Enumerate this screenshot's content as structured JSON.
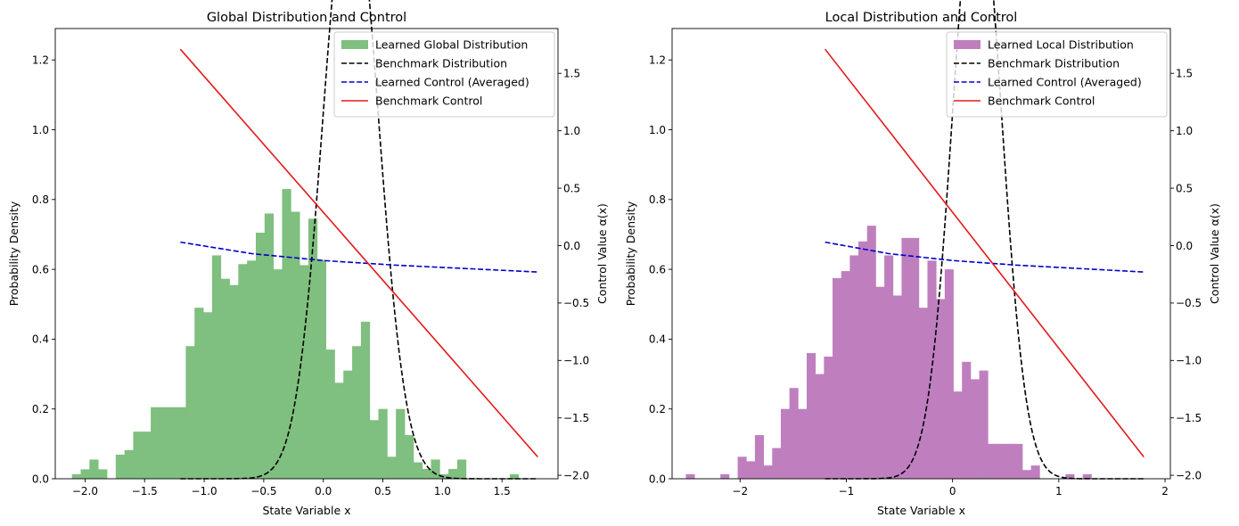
{
  "chart_data": [
    {
      "type": "bar+line",
      "title": "Global Distribution and Control",
      "xlabel": "State Variable x",
      "ylabel": "Probability Density",
      "y2label": "Control Value α(x)",
      "xlim": [
        -2.25,
        1.97
      ],
      "ylim": [
        0,
        1.29
      ],
      "y2lim": [
        -2.03,
        1.89
      ],
      "xticks": [
        -2.0,
        -1.5,
        -1.0,
        -0.5,
        0.0,
        0.5,
        1.0,
        1.5
      ],
      "xtick_labels": [
        "−2.0",
        "−1.5",
        "−1.0",
        "−0.5",
        "0.0",
        "0.5",
        "1.0",
        "1.5"
      ],
      "yticks": [
        0.0,
        0.2,
        0.4,
        0.6,
        0.8,
        1.0,
        1.2
      ],
      "ytick_labels": [
        "0.0",
        "0.2",
        "0.4",
        "0.6",
        "0.8",
        "1.0",
        "1.2"
      ],
      "y2ticks": [
        -2.0,
        -1.5,
        -1.0,
        -0.5,
        0.0,
        0.5,
        1.0,
        1.5
      ],
      "y2tick_labels": [
        "−2.0",
        "−1.5",
        "−1.0",
        "−0.5",
        "0.0",
        "0.5",
        "1.0",
        "1.5"
      ],
      "hist": {
        "name": "Learned Global Distribution",
        "color": "#7fbf7f",
        "bin_start": -2.11,
        "bin_width": 0.0735,
        "values": [
          0.013,
          0.027,
          0.055,
          0.027,
          0,
          0.069,
          0.082,
          0.135,
          0.135,
          0.205,
          0.205,
          0.205,
          0.205,
          0.38,
          0.49,
          0.477,
          0.64,
          0.573,
          0.555,
          0.615,
          0.625,
          0.705,
          0.76,
          0.6,
          0.83,
          0.765,
          0.612,
          0.745,
          0.627,
          0.37,
          0.275,
          0.31,
          0.38,
          0.45,
          0.168,
          0.2,
          0.063,
          0.2,
          0.125,
          0.047,
          0.028,
          0.055,
          0.013,
          0.028,
          0.055,
          0,
          0,
          0,
          0,
          0,
          0.013
        ]
      },
      "series": [
        {
          "name": "Benchmark Distribution",
          "color": "#000000",
          "style": "dashed",
          "axis": "left",
          "kind": "gauss",
          "x_range": [
            -1.2,
            1.8
          ],
          "mu": 0.23,
          "sigma": 0.23,
          "amp": 1.73
        },
        {
          "name": "Learned Control (Averaged)",
          "color": "#0000cc",
          "style": "dashed",
          "axis": "right",
          "kind": "curve",
          "x": [
            -1.2,
            -0.6,
            0.0,
            0.6,
            1.2,
            1.8
          ],
          "y": [
            0.03,
            -0.07,
            -0.13,
            -0.17,
            -0.2,
            -0.23
          ]
        },
        {
          "name": "Benchmark Control",
          "color": "#e31a1c",
          "style": "solid",
          "axis": "right",
          "kind": "curve",
          "x": [
            -1.2,
            1.8
          ],
          "y": [
            1.71,
            -1.84
          ]
        }
      ],
      "legend": [
        "Learned Global Distribution",
        "Benchmark Distribution",
        "Learned Control (Averaged)",
        "Benchmark Control"
      ],
      "legend_loc": "upper right"
    },
    {
      "type": "bar+line",
      "title": "Local Distribution and Control",
      "xlabel": "State Variable x",
      "ylabel": "Probability Density",
      "y2label": "Control Value α(x)",
      "xlim": [
        -2.64,
        2.05
      ],
      "ylim": [
        0,
        1.29
      ],
      "y2lim": [
        -2.03,
        1.89
      ],
      "xticks": [
        -2,
        -1,
        0,
        1,
        2
      ],
      "xtick_labels": [
        "−2",
        "−1",
        "0",
        "1",
        "2"
      ],
      "yticks": [
        0.0,
        0.2,
        0.4,
        0.6,
        0.8,
        1.0,
        1.2
      ],
      "ytick_labels": [
        "0.0",
        "0.2",
        "0.4",
        "0.6",
        "0.8",
        "1.0",
        "1.2"
      ],
      "y2ticks": [
        -2.0,
        -1.5,
        -1.0,
        -0.5,
        0.0,
        0.5,
        1.0,
        1.5
      ],
      "y2tick_labels": [
        "−2.0",
        "−1.5",
        "−1.0",
        "−0.5",
        "0.0",
        "0.5",
        "1.0",
        "1.5"
      ],
      "hist": {
        "name": "Learned Local Distribution",
        "color": "#bf7fbf",
        "bin_start": -2.51,
        "bin_width": 0.0812,
        "values": [
          0.013,
          0,
          0,
          0,
          0.013,
          0,
          0.063,
          0.05,
          0.125,
          0.038,
          0.088,
          0.2,
          0.26,
          0.2,
          0.36,
          0.3,
          0.35,
          0.575,
          0.595,
          0.64,
          0.68,
          0.725,
          0.55,
          0.64,
          0.525,
          0.69,
          0.69,
          0.49,
          0.625,
          0.515,
          0.6,
          0.25,
          0.335,
          0.285,
          0.31,
          0.1,
          0.1,
          0.1,
          0.1,
          0.025,
          0.038,
          0,
          0,
          0,
          0.013,
          0,
          0.013
        ]
      },
      "series": [
        {
          "name": "Benchmark Distribution",
          "color": "#000000",
          "style": "dashed",
          "axis": "left",
          "kind": "gauss",
          "x_range": [
            -1.2,
            1.8
          ],
          "mu": 0.23,
          "sigma": 0.23,
          "amp": 1.73
        },
        {
          "name": "Learned Control (Averaged)",
          "color": "#0000cc",
          "style": "dashed",
          "axis": "right",
          "kind": "curve",
          "x": [
            -1.2,
            -0.6,
            0.0,
            0.6,
            1.2,
            1.8
          ],
          "y": [
            0.03,
            -0.07,
            -0.13,
            -0.17,
            -0.2,
            -0.23
          ]
        },
        {
          "name": "Benchmark Control",
          "color": "#e31a1c",
          "style": "solid",
          "axis": "right",
          "kind": "curve",
          "x": [
            -1.2,
            1.8
          ],
          "y": [
            1.71,
            -1.84
          ]
        }
      ],
      "legend": [
        "Learned Local Distribution",
        "Benchmark Distribution",
        "Learned Control (Averaged)",
        "Benchmark Control"
      ],
      "legend_loc": "upper right"
    }
  ]
}
